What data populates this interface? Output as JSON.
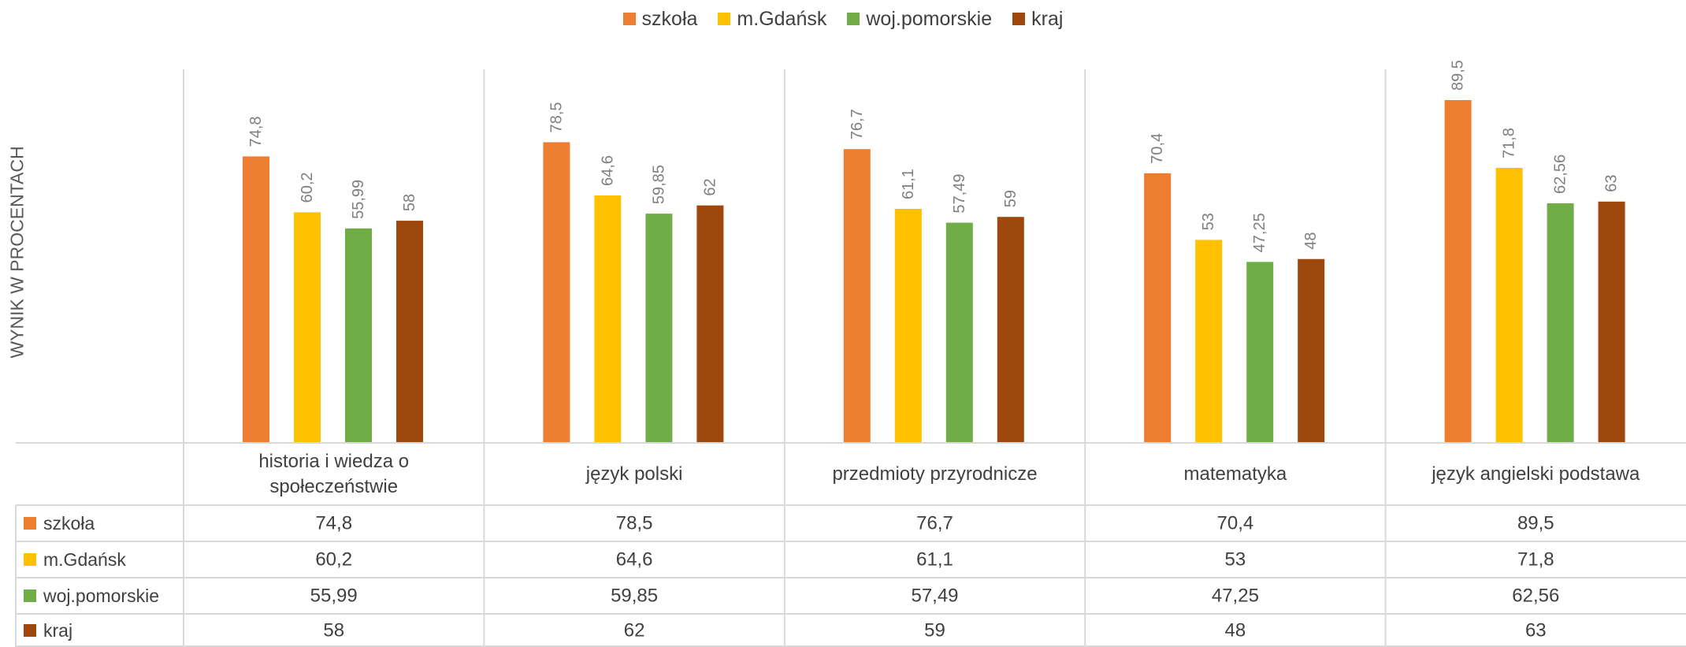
{
  "chart_data": {
    "type": "bar",
    "title": "",
    "xlabel": "",
    "ylabel": "WYNIK W PROCENTACH",
    "ylim": [
      0,
      100
    ],
    "grid": false,
    "legend_position": "top-center",
    "data_table": true,
    "categories": [
      "historia i wiedza o społeczeństwie",
      "język polski",
      "przedmioty przyrodnicze",
      "matematyka",
      "język angielski podstawa"
    ],
    "category_lines": [
      [
        "historia i wiedza o",
        "społeczeństwie"
      ],
      [
        "język polski"
      ],
      [
        "przedmioty przyrodnicze"
      ],
      [
        "matematyka"
      ],
      [
        "język angielski podstawa"
      ]
    ],
    "series": [
      {
        "name": "szkoła",
        "color": "#ED7D31",
        "values": [
          74.8,
          78.5,
          76.7,
          70.4,
          89.5
        ],
        "labels": [
          "74,8",
          "78,5",
          "76,7",
          "70,4",
          "89,5"
        ]
      },
      {
        "name": "m.Gdańsk",
        "color": "#FFC000",
        "values": [
          60.2,
          64.6,
          61.1,
          53,
          71.8
        ],
        "labels": [
          "60,2",
          "64,6",
          "61,1",
          "53",
          "71,8"
        ]
      },
      {
        "name": "woj.pomorskie",
        "color": "#70AD47",
        "values": [
          55.99,
          59.85,
          57.49,
          47.25,
          62.56
        ],
        "labels": [
          "55,99",
          "59,85",
          "57,49",
          "47,25",
          "62,56"
        ]
      },
      {
        "name": "kraj",
        "color": "#9E480E",
        "values": [
          58,
          62,
          59,
          48,
          63
        ],
        "labels": [
          "58",
          "62",
          "59",
          "48",
          "63"
        ]
      }
    ]
  }
}
